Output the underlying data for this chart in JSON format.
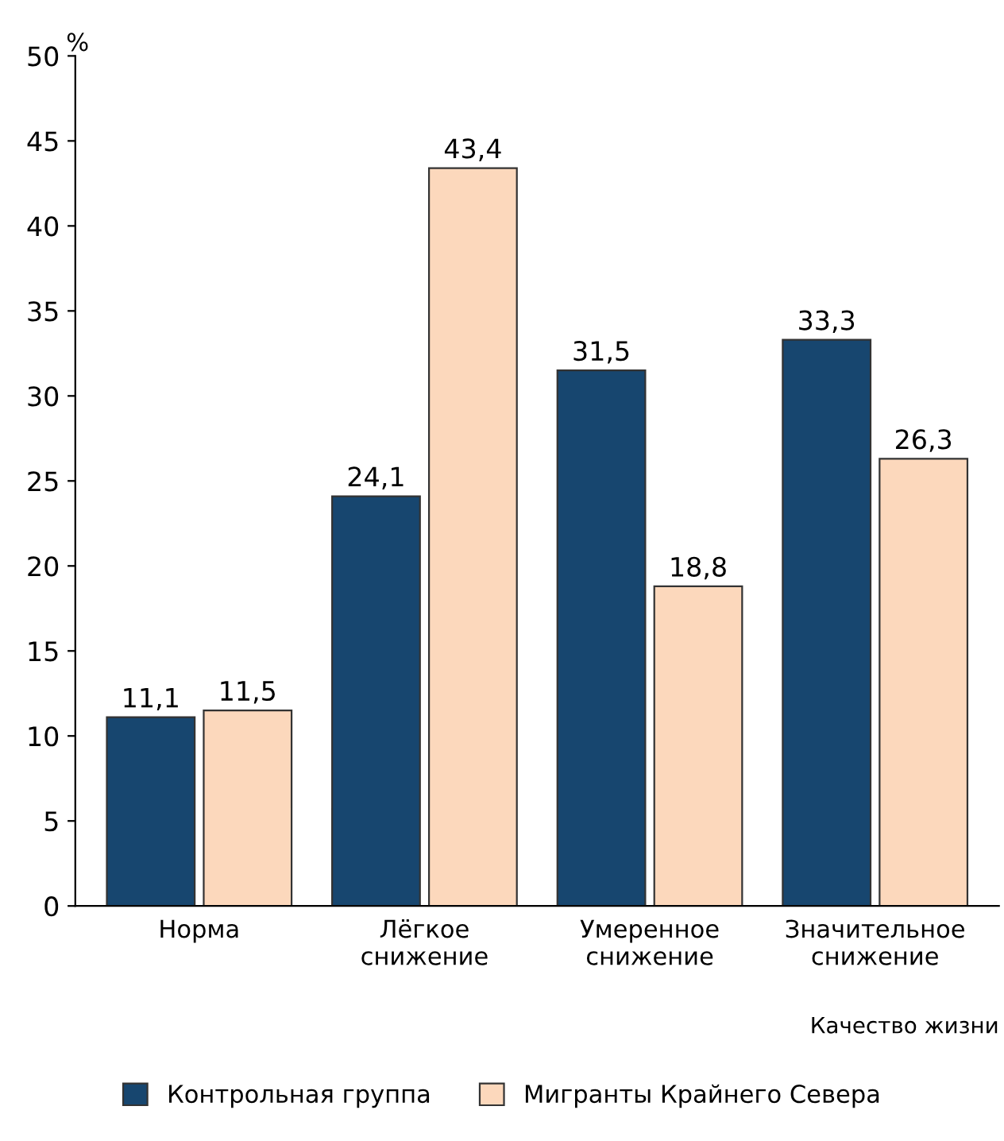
{
  "chart_data": {
    "type": "bar",
    "ylabel": "%",
    "xlabel": "Качество жизни",
    "categories": [
      "Норма",
      "Лёгкое\nснижение",
      "Умеренное\nснижение",
      "Значительное\nснижение"
    ],
    "series": [
      {
        "name": "Контрольная группа",
        "color": "#17466f",
        "values": [
          11.1,
          24.1,
          31.5,
          33.3
        ],
        "value_labels": [
          "11,1",
          "24,1",
          "31,5",
          "33,3"
        ]
      },
      {
        "name": "Мигранты Крайнего Севера",
        "color": "#fcd8bc",
        "values": [
          11.5,
          43.4,
          18.8,
          26.3
        ],
        "value_labels": [
          "11,5",
          "43,4",
          "18,8",
          "26,3"
        ]
      }
    ],
    "ylim": [
      0,
      50
    ],
    "yticks": [
      0,
      5,
      10,
      15,
      20,
      25,
      30,
      35,
      40,
      45,
      50
    ],
    "grid": false,
    "legend": "bottom"
  }
}
